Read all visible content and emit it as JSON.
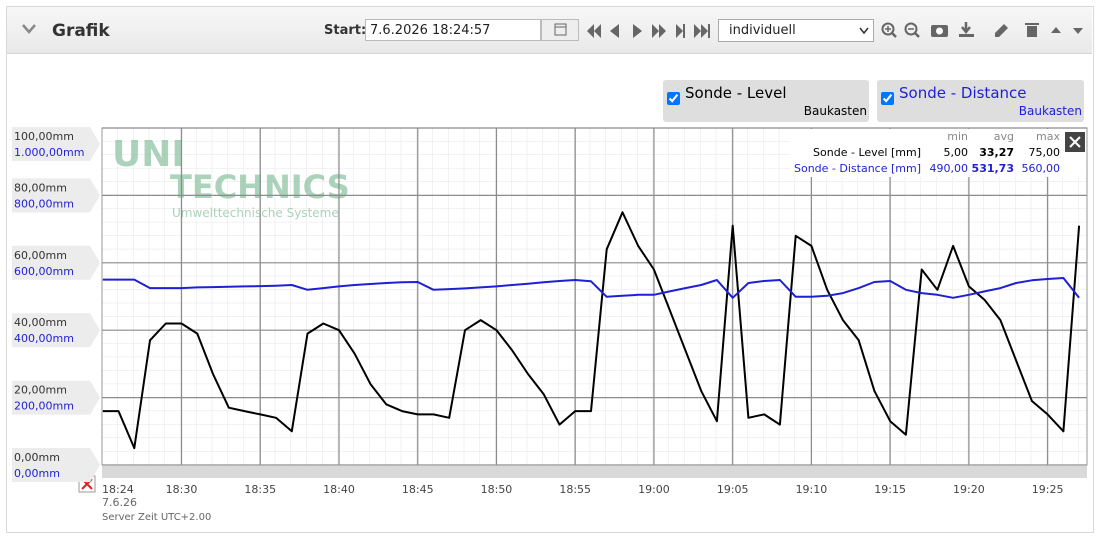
{
  "header": {
    "title": "Grafik"
  },
  "toolbar": {
    "start_label": "Start:",
    "start_value": "7.6.2026 18:24:57",
    "range": "individuell"
  },
  "watermark": {
    "brand_1": "UNI",
    "brand_2": "TECHNICS",
    "tagline": "Umwelttechnische Systeme"
  },
  "stats": {
    "columns": [
      "min",
      "avg",
      "max"
    ],
    "rows": [
      {
        "label": "Sonde - Level [mm]",
        "min": "5,00",
        "avg": "33,27",
        "max": "75,00"
      },
      {
        "label": "Sonde - Distance [mm]",
        "min": "490,00",
        "avg": "531,73",
        "max": "560,00"
      }
    ]
  },
  "footer": {
    "date": "7.6.26",
    "server_time": "Server Zeit UTC+2.00"
  },
  "chart_data": {
    "type": "line",
    "x": [
      "18:25",
      "18:26",
      "18:27",
      "18:28",
      "18:29",
      "18:30",
      "18:31",
      "18:32",
      "18:33",
      "18:34",
      "18:35",
      "18:36",
      "18:37",
      "18:38",
      "18:39",
      "18:40",
      "18:41",
      "18:42",
      "18:43",
      "18:44",
      "18:45",
      "18:46",
      "18:47",
      "18:48",
      "18:49",
      "18:50",
      "18:51",
      "18:52",
      "18:53",
      "18:54",
      "18:55",
      "18:56",
      "18:57",
      "18:58",
      "18:59",
      "19:00",
      "19:01",
      "19:02",
      "19:03",
      "19:04",
      "19:05",
      "19:06",
      "19:07",
      "19:08",
      "19:09",
      "19:10",
      "19:11",
      "19:12",
      "19:13",
      "19:14",
      "19:15",
      "19:16",
      "19:17",
      "19:18",
      "19:19",
      "19:20",
      "19:21",
      "19:22",
      "19:23",
      "19:24",
      "19:25",
      "19:26",
      "19:27"
    ],
    "xlim": [
      "18:24:57",
      "19:27:30"
    ],
    "xticks": [
      {
        "value": "18:24:57",
        "label": "18:24"
      },
      "18:30",
      "18:35",
      "18:40",
      "18:45",
      "18:50",
      "18:55",
      "19:00",
      "19:05",
      "19:10",
      "19:15",
      "19:20",
      "19:25"
    ],
    "ylim": [
      0,
      100
    ],
    "yticks": [
      {
        "value": 0,
        "label": "0,00mm"
      },
      {
        "value": 20,
        "label": "20,00mm"
      },
      {
        "value": 40,
        "label": "40,00mm"
      },
      {
        "value": 60,
        "label": "60,00mm"
      },
      {
        "value": 80,
        "label": "80,00mm"
      },
      {
        "value": 100,
        "label": "100,00mm"
      }
    ],
    "y2lim": [
      0,
      1000
    ],
    "y2ticks": [
      {
        "value": 0,
        "label": "0,00mm"
      },
      {
        "value": 200,
        "label": "200,00mm"
      },
      {
        "value": 400,
        "label": "400,00mm"
      },
      {
        "value": 600,
        "label": "600,00mm"
      },
      {
        "value": 800,
        "label": "800,00mm"
      },
      {
        "value": 1000,
        "label": "1.000,00mm"
      }
    ],
    "grid": true,
    "series": [
      {
        "name": "Sonde - Level",
        "group": "Baukasten",
        "color": "#000000",
        "values": [
          16,
          16,
          5,
          37,
          42,
          42,
          39,
          27,
          17,
          16,
          15,
          14,
          10,
          39,
          42,
          40,
          33,
          24,
          18,
          16,
          15,
          15,
          14,
          40,
          43,
          40,
          34,
          27,
          21,
          12,
          16,
          16,
          64,
          75,
          65,
          58,
          46,
          34,
          22,
          13,
          71,
          14,
          15,
          12,
          68,
          65,
          52,
          43,
          37,
          22,
          13,
          9,
          58,
          52,
          65,
          53,
          49,
          43,
          31,
          19,
          15,
          10,
          71
        ]
      },
      {
        "name": "Sonde - Distance",
        "group": "Baukasten",
        "color": "#1f1fd6",
        "axis": "y2",
        "values": [
          550,
          550,
          550,
          525,
          525,
          525,
          527,
          528,
          529,
          530,
          531,
          532,
          534,
          520,
          525,
          530,
          534,
          537,
          540,
          542,
          543,
          520,
          522,
          524,
          527,
          530,
          534,
          538,
          542,
          546,
          549,
          545,
          499,
          502,
          505,
          505,
          515,
          525,
          534,
          549,
          496,
          540,
          546,
          549,
          499,
          499,
          502,
          510,
          525,
          543,
          546,
          520,
          510,
          505,
          496,
          505,
          515,
          525,
          540,
          548,
          552,
          555,
          496
        ]
      }
    ]
  }
}
